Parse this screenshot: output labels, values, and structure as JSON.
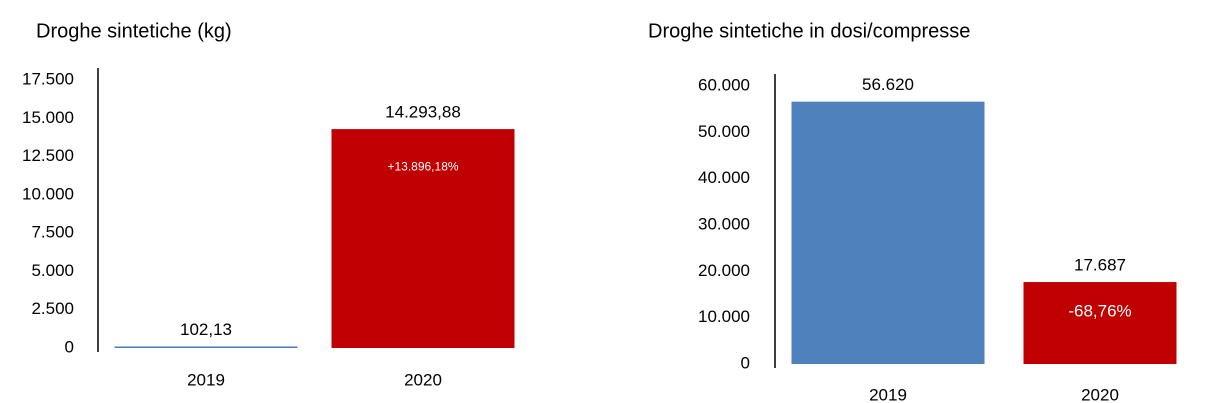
{
  "chart_data": [
    {
      "type": "bar",
      "title": "Droghe sintetiche  (kg)",
      "categories": [
        "2019",
        "2020"
      ],
      "values": [
        102.13,
        14293.88
      ],
      "value_labels": [
        "102,13",
        "14.293,88"
      ],
      "colors": [
        "#4f81bd",
        "#c00000"
      ],
      "annotation": "+13.896,18%",
      "ylim": [
        0,
        17500
      ],
      "yticks": [
        0,
        {
          "value": 2500,
          "label": "2.500"
        },
        {
          "value": 5000,
          "label": "5.000"
        },
        {
          "value": 7500,
          "label": "7.500"
        },
        {
          "value": 10000,
          "label": "10.000"
        },
        {
          "value": 12500,
          "label": "12.500"
        },
        {
          "value": 15000,
          "label": "15.000"
        },
        {
          "value": 17500,
          "label": "17.500"
        }
      ]
    },
    {
      "type": "bar",
      "title": "Droghe sintetiche  in dosi/compresse",
      "categories": [
        "2019",
        "2020"
      ],
      "values": [
        56620,
        17687
      ],
      "value_labels": [
        "56.620",
        "17.687"
      ],
      "colors": [
        "#4f81bd",
        "#c00000"
      ],
      "annotation": "-68,76%",
      "ylim": [
        0,
        60000
      ],
      "yticks": [
        0,
        {
          "value": 10000,
          "label": "10.000"
        },
        {
          "value": 20000,
          "label": "20.000"
        },
        {
          "value": 30000,
          "label": "30.000"
        },
        {
          "value": 40000,
          "label": "40.000"
        },
        {
          "value": 50000,
          "label": "50.000"
        },
        {
          "value": 60000,
          "label": "60.000"
        }
      ]
    }
  ]
}
